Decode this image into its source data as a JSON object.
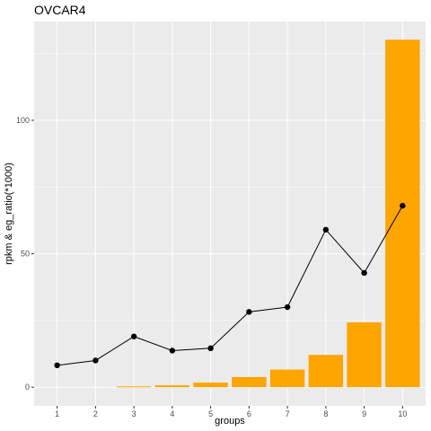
{
  "chart_data": {
    "type": "bar",
    "title": "OVCAR4",
    "xlabel": "groups",
    "ylabel": "rpkm & eg_ratio(*1000)",
    "categories": [
      "1",
      "2",
      "3",
      "4",
      "5",
      "6",
      "7",
      "8",
      "9",
      "10"
    ],
    "series": [
      {
        "type": "bar",
        "values": [
          0,
          0,
          0.3,
          0.7,
          1.7,
          3.8,
          6.6,
          12.1,
          24.3,
          130.2
        ]
      },
      {
        "type": "line",
        "values": [
          8.2,
          10.0,
          19.0,
          13.7,
          14.6,
          28.2,
          30.0,
          59.0,
          42.8,
          68.0
        ]
      }
    ],
    "ylim": [
      -7,
      137
    ],
    "yticks": [
      0,
      50,
      100
    ],
    "grid": true,
    "colors": {
      "bar": "#ffa500",
      "line": "#000000",
      "panel": "#ebebeb",
      "grid": "#ffffff"
    }
  }
}
